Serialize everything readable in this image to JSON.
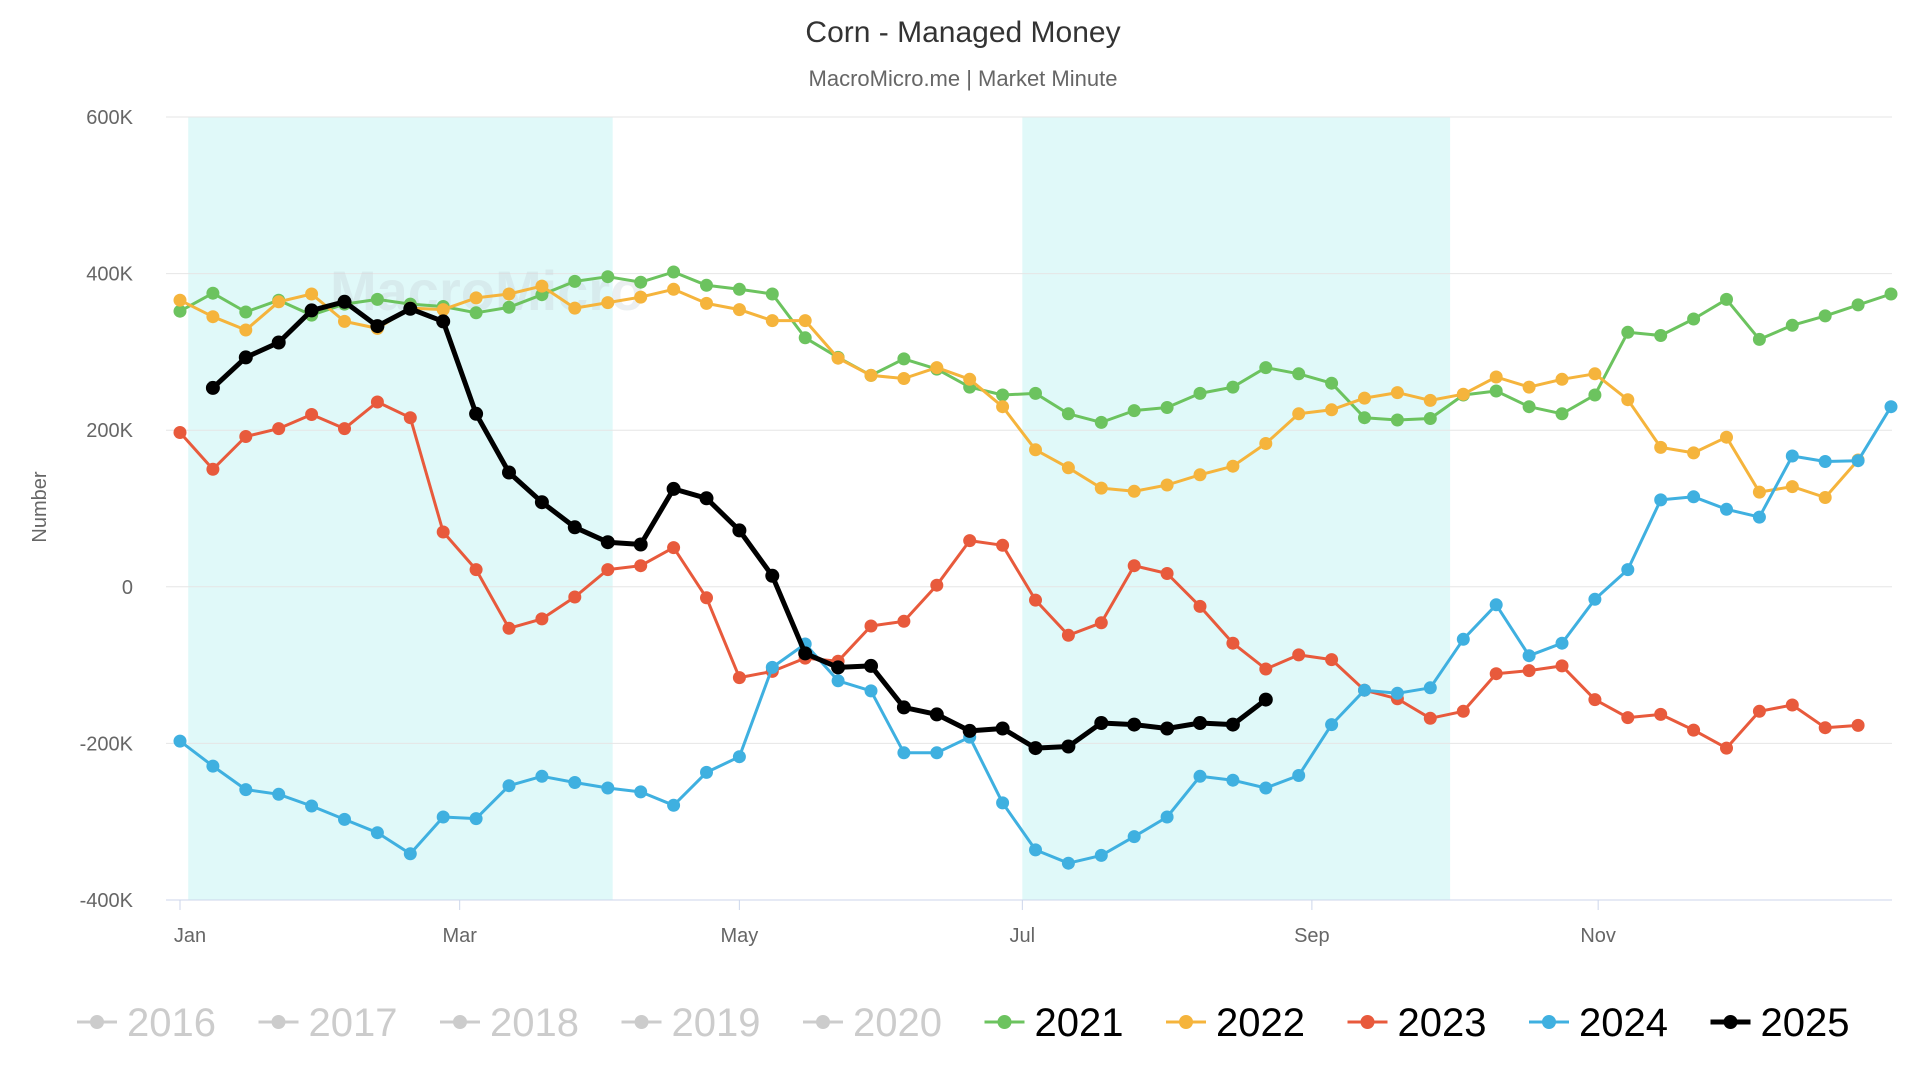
{
  "chart_data": {
    "type": "line",
    "title": "Corn - Managed Money",
    "subtitle": "MacroMicro.me | Market Minute",
    "watermark": "MacroMicro",
    "ylabel": "Number",
    "xlabel": "",
    "ylim": [
      -400000,
      600000
    ],
    "y_ticks": [
      {
        "value": 600000,
        "label": "600K"
      },
      {
        "value": 400000,
        "label": "400K"
      },
      {
        "value": 200000,
        "label": "200K"
      },
      {
        "value": 0,
        "label": "0"
      },
      {
        "value": -200000,
        "label": "-200K"
      },
      {
        "value": -400000,
        "label": "-400K"
      }
    ],
    "x_range_weeks": [
      0,
      52
    ],
    "x_ticks": [
      {
        "week": 0,
        "label": "Jan"
      },
      {
        "week": 8.5,
        "label": "Mar"
      },
      {
        "week": 17,
        "label": "May"
      },
      {
        "week": 25.6,
        "label": "Jul"
      },
      {
        "week": 34.4,
        "label": "Sep"
      },
      {
        "week": 43.1,
        "label": "Nov"
      }
    ],
    "shaded_bands_weeks": [
      [
        0.25,
        13.15
      ],
      [
        25.6,
        38.6
      ]
    ],
    "colors": {
      "band": "#e0f9f9",
      "grid": "#e6e6e6",
      "legend_inactive": "#cccccc",
      "legend_active_text": "#000000"
    },
    "series": [
      {
        "name": "2016",
        "visible": false,
        "color": "#cccccc",
        "values": []
      },
      {
        "name": "2017",
        "visible": false,
        "color": "#cccccc",
        "values": []
      },
      {
        "name": "2018",
        "visible": false,
        "color": "#cccccc",
        "values": []
      },
      {
        "name": "2019",
        "visible": false,
        "color": "#cccccc",
        "values": []
      },
      {
        "name": "2020",
        "visible": false,
        "color": "#cccccc",
        "values": []
      },
      {
        "name": "2021",
        "visible": true,
        "color": "#6cc35f",
        "bold": false,
        "start_week": 0,
        "values": [
          352000,
          375000,
          351000,
          366000,
          347000,
          361000,
          367000,
          361000,
          358000,
          350000,
          357000,
          373000,
          390000,
          396000,
          389000,
          402000,
          385000,
          380000,
          374000,
          318000,
          293000,
          270000,
          291000,
          278000,
          255000,
          245000,
          247000,
          221000,
          210000,
          225000,
          229000,
          247000,
          255000,
          280000,
          272000,
          260000,
          216000,
          213000,
          215000,
          245000,
          250000,
          230000,
          221000,
          245000,
          325000,
          321000,
          342000,
          367000,
          316000,
          334000,
          346000,
          360000,
          374000
        ]
      },
      {
        "name": "2022",
        "visible": true,
        "color": "#f5b43c",
        "bold": false,
        "start_week": 0,
        "values": [
          366000,
          345000,
          328000,
          364000,
          374000,
          339000,
          330000,
          356000,
          354000,
          369000,
          374000,
          384000,
          356000,
          363000,
          370000,
          380000,
          362000,
          354000,
          340000,
          340000,
          292000,
          270000,
          266000,
          280000,
          265000,
          230000,
          175000,
          152000,
          126000,
          122000,
          130000,
          143000,
          154000,
          183000,
          221000,
          226000,
          241000,
          248000,
          238000,
          246000,
          268000,
          255000,
          265000,
          272000,
          239000,
          178000,
          171000,
          191000,
          121000,
          128000,
          114000,
          162000,
          null
        ]
      },
      {
        "name": "2023",
        "visible": true,
        "color": "#e85a3c",
        "bold": false,
        "start_week": 0,
        "values": [
          197000,
          150000,
          192000,
          202000,
          220000,
          202000,
          236000,
          216000,
          70000,
          22000,
          -53000,
          -41000,
          -13000,
          22000,
          27000,
          50000,
          -14000,
          -116000,
          -108000,
          -91000,
          -95000,
          -50000,
          -44000,
          2000,
          59000,
          53000,
          -17000,
          -62000,
          -46000,
          27000,
          17000,
          -25000,
          -72000,
          -105000,
          -87000,
          -93000,
          -132000,
          -143000,
          -168000,
          -159000,
          -111000,
          -107000,
          -101000,
          -144000,
          -167000,
          -163000,
          -183000,
          -206000,
          -159000,
          -151000,
          -180000,
          -177000,
          null
        ]
      },
      {
        "name": "2024",
        "visible": true,
        "color": "#3fb0e0",
        "bold": false,
        "start_week": 0,
        "values": [
          -197000,
          -229000,
          -259000,
          -265000,
          -280000,
          -297000,
          -314000,
          -341000,
          -294000,
          -296000,
          -254000,
          -242000,
          -250000,
          -257000,
          -262000,
          -279000,
          -237000,
          -217000,
          -103000,
          -73000,
          -120000,
          -133000,
          -212000,
          -212000,
          -192000,
          -276000,
          -336000,
          -353000,
          -343000,
          -319000,
          -294000,
          -242000,
          -247000,
          -257000,
          -241000,
          -176000,
          -132000,
          -136000,
          -129000,
          -67000,
          -23000,
          -88000,
          -72000,
          -16000,
          22000,
          111000,
          115000,
          99000,
          89000,
          167000,
          160000,
          161000,
          230000
        ]
      },
      {
        "name": "2025",
        "visible": true,
        "color": "#000000",
        "bold": true,
        "start_week": 1,
        "values": [
          254000,
          293000,
          312000,
          353000,
          364000,
          333000,
          355000,
          339000,
          221000,
          146000,
          108000,
          76000,
          57000,
          54000,
          125000,
          113000,
          72000,
          14000,
          -85000,
          -103000,
          -101000,
          -154000,
          -163000,
          -184000,
          -181000,
          -206000,
          -204000,
          -174000,
          -176000,
          -181000,
          -174000,
          -176000,
          -144000
        ]
      }
    ],
    "legend": {
      "placement": "bottom"
    }
  }
}
